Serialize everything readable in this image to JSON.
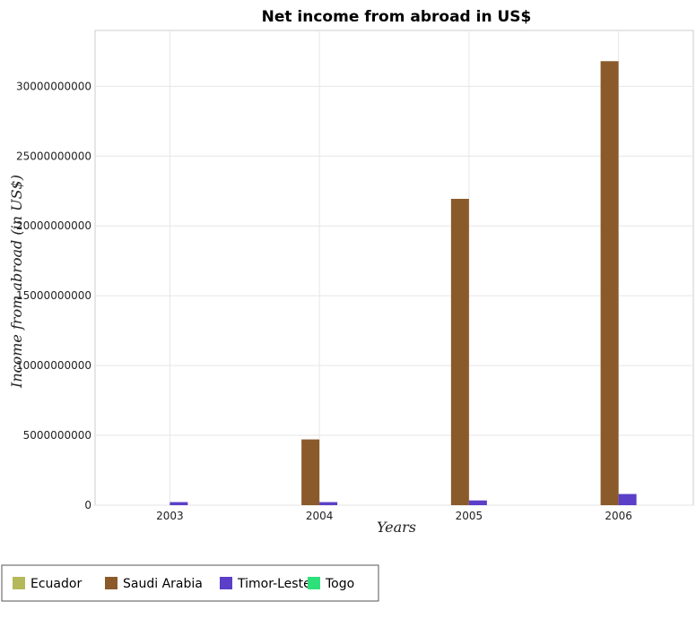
{
  "chart_data": {
    "type": "bar",
    "title": "Net income from abroad in US$",
    "xlabel": "Years",
    "ylabel": "Income from abroad (in US$)",
    "categories": [
      "2003",
      "2004",
      "2005",
      "2006"
    ],
    "ylim": [
      0,
      34000000000
    ],
    "yticks": [
      0,
      5000000000,
      10000000000,
      15000000000,
      20000000000,
      25000000000,
      30000000000
    ],
    "ytick_labels": [
      "0",
      "5000000000",
      "10000000000",
      "15000000000",
      "20000000000",
      "25000000000",
      "30000000000"
    ],
    "grid": true,
    "legend_position": "bottom-left",
    "series": [
      {
        "name": "Ecuador",
        "color": "#b5b95a",
        "values": [
          0,
          0,
          0,
          0
        ]
      },
      {
        "name": "Saudi Arabia",
        "color": "#8b5a2b",
        "values": [
          0,
          4710000000,
          21940000000,
          31800000000
        ]
      },
      {
        "name": "Timor-Leste",
        "color": "#5b3fc8",
        "values": [
          220000000,
          220000000,
          340000000,
          800000000
        ]
      },
      {
        "name": "Togo",
        "color": "#2ee07a",
        "values": [
          0,
          0,
          0,
          0
        ]
      }
    ]
  }
}
